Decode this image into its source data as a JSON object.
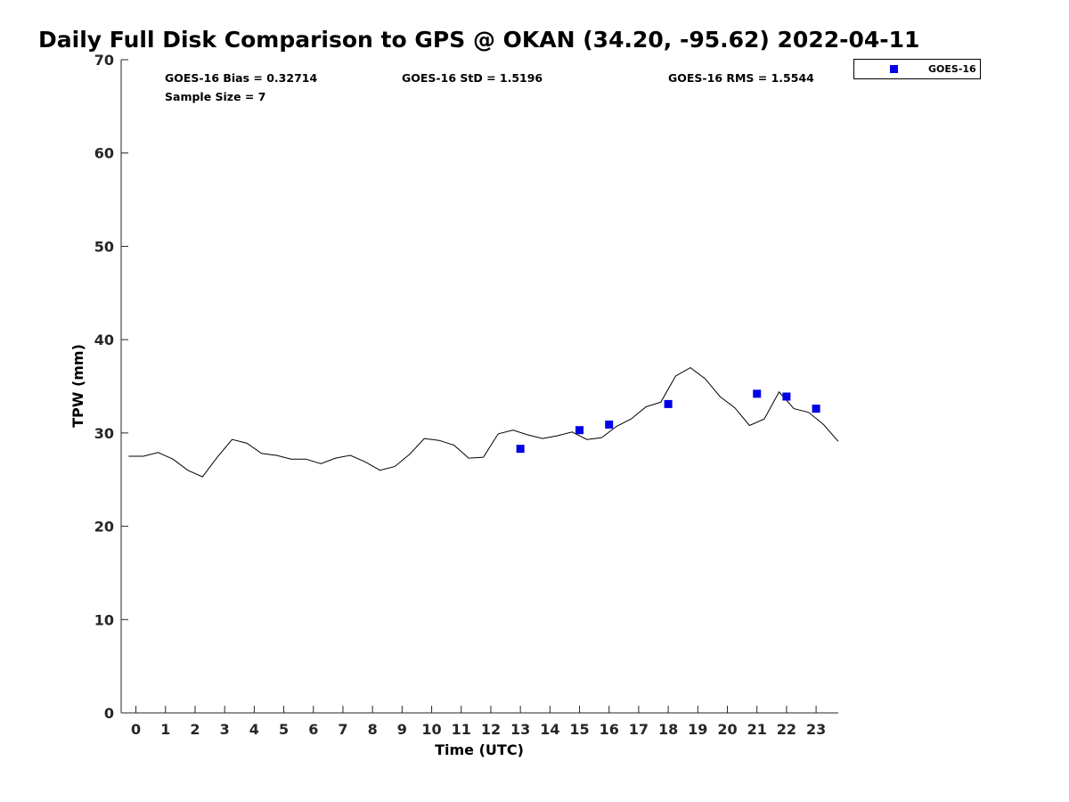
{
  "chart_data": {
    "type": "line",
    "title": "Daily Full Disk Comparison to GPS @ OKAN (34.20, -95.62) 2022-04-11",
    "xlabel": "Time (UTC)",
    "ylabel": "TPW (mm)",
    "xlim": [
      -0.5,
      23.75
    ],
    "ylim": [
      0,
      70
    ],
    "xticks": [
      0,
      1,
      2,
      3,
      4,
      5,
      6,
      7,
      8,
      9,
      10,
      11,
      12,
      13,
      14,
      15,
      16,
      17,
      18,
      19,
      20,
      21,
      22,
      23
    ],
    "yticks": [
      0,
      10,
      20,
      30,
      40,
      50,
      60,
      70
    ],
    "grid": false,
    "legend": {
      "position": "top-right, outside plot",
      "entries": [
        "GOES-16"
      ]
    },
    "stats": {
      "bias": "GOES-16 Bias = 0.32714",
      "std": "GOES-16 StD = 1.5196",
      "rms": "GOES-16 RMS = 1.5544",
      "sample": "Sample Size = 7"
    },
    "series": [
      {
        "style": "line",
        "color": "#000000",
        "x": [
          -0.25,
          0.25,
          0.75,
          1.25,
          1.75,
          2.25,
          2.75,
          3.25,
          3.75,
          4.25,
          4.75,
          5.25,
          5.75,
          6.25,
          6.75,
          7.25,
          7.75,
          8.25,
          8.75,
          9.25,
          9.75,
          10.25,
          10.75,
          11.25,
          11.75,
          12.25,
          12.75,
          13.25,
          13.75,
          14.25,
          14.75,
          15.25,
          15.75,
          16.25,
          16.75,
          17.25,
          17.75,
          18.25,
          18.75,
          19.25,
          19.75,
          20.25,
          20.75,
          21.25,
          21.75,
          22.25,
          22.75,
          23.25,
          23.75
        ],
        "y": [
          27.5,
          27.5,
          27.9,
          27.2,
          26.0,
          25.3,
          27.4,
          29.3,
          28.9,
          27.8,
          27.6,
          27.2,
          27.2,
          26.7,
          27.3,
          27.6,
          26.9,
          26.0,
          26.4,
          27.7,
          29.4,
          29.2,
          28.7,
          27.3,
          27.4,
          29.9,
          30.3,
          29.8,
          29.4,
          29.7,
          30.1,
          29.3,
          29.5,
          30.7,
          31.5,
          32.8,
          33.3,
          36.1,
          37.0,
          35.8,
          33.9,
          32.7,
          30.8,
          31.5,
          34.4,
          32.6,
          32.2,
          30.9,
          29.1
        ]
      },
      {
        "name": "GOES-16",
        "style": "scatter",
        "marker": "square",
        "color": "#0000e6",
        "x": [
          13,
          15,
          16,
          18,
          21,
          22,
          23
        ],
        "y": [
          28.3,
          30.3,
          30.9,
          33.1,
          34.2,
          33.9,
          32.6
        ]
      }
    ]
  }
}
